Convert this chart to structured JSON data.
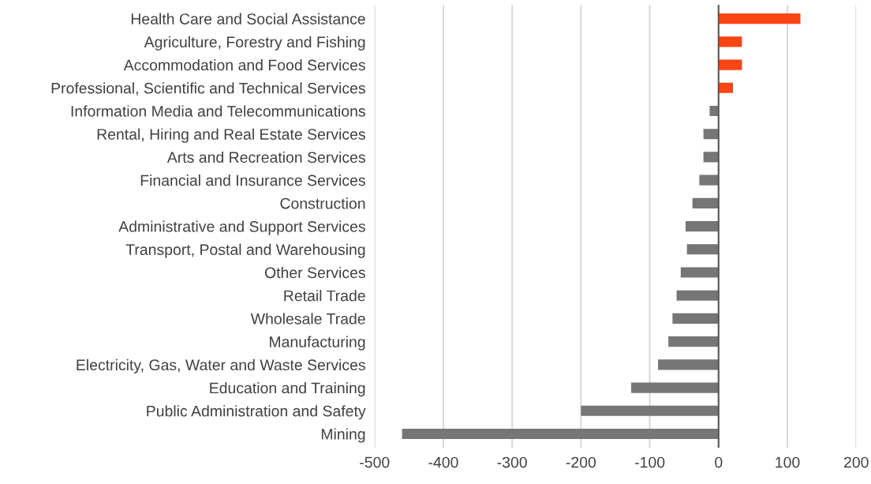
{
  "chart_data": {
    "type": "bar",
    "orientation": "horizontal",
    "categories": [
      "Health Care and Social Assistance",
      "Agriculture, Forestry and Fishing",
      "Accommodation and Food Services",
      "Professional, Scientific and Technical Services",
      "Information Media and Telecommunications",
      "Rental, Hiring and Real Estate Services",
      "Arts and Recreation Services",
      "Financial and Insurance Services",
      "Construction",
      "Administrative and Support Services",
      "Transport, Postal and Warehousing",
      "Other Services",
      "Retail Trade",
      "Wholesale Trade",
      "Manufacturing",
      "Electricity, Gas, Water and Waste Services",
      "Education and Training",
      "Public Administration and Safety",
      "Mining"
    ],
    "values": [
      119,
      34,
      34,
      21,
      -13,
      -22,
      -22,
      -28,
      -38,
      -48,
      -46,
      -55,
      -61,
      -67,
      -73,
      -88,
      -127,
      -200,
      -460
    ],
    "colors": [
      "#fc4514",
      "#fc4514",
      "#fc4514",
      "#fc4514",
      "#767676",
      "#767676",
      "#767676",
      "#767676",
      "#767676",
      "#767676",
      "#767676",
      "#767676",
      "#767676",
      "#767676",
      "#767676",
      "#767676",
      "#767676",
      "#767676",
      "#767676"
    ],
    "xlim": [
      -500,
      200
    ],
    "xticks": [
      -500,
      -400,
      -300,
      -200,
      -100,
      0,
      100,
      200
    ],
    "grid": "x"
  }
}
